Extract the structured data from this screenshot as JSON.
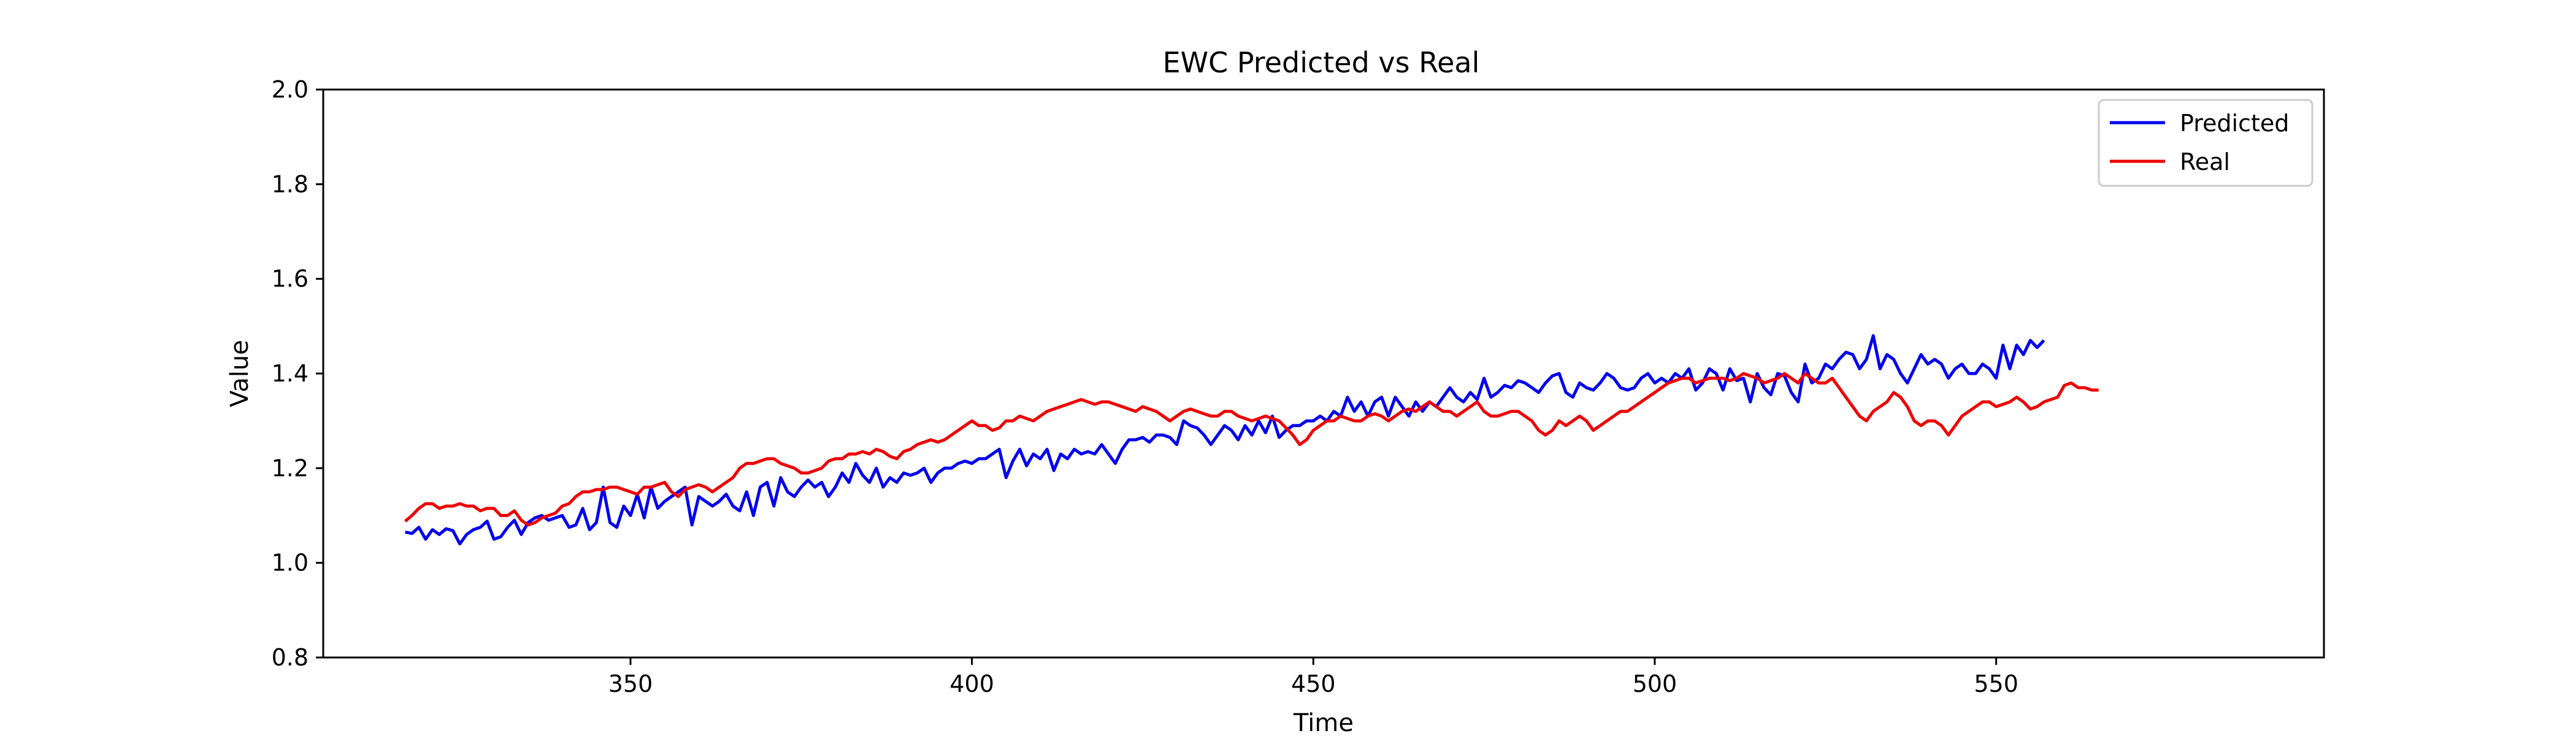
{
  "chart_data": {
    "type": "line",
    "title": "EWC Predicted vs Real",
    "xlabel": "Time",
    "ylabel": "Value",
    "xlim": [
      305,
      598
    ],
    "ylim": [
      0.8,
      2.0
    ],
    "xticks": [
      350,
      400,
      450,
      500,
      550
    ],
    "yticks": [
      0.8,
      1.0,
      1.2,
      1.4,
      1.6,
      1.8,
      2.0
    ],
    "xtick_labels": [
      "350",
      "400",
      "450",
      "500",
      "550"
    ],
    "ytick_labels": [
      "0.8",
      "1.0",
      "1.2",
      "1.4",
      "1.6",
      "1.8",
      "2.0"
    ],
    "grid": false,
    "legend_position": "top-right",
    "x_start": 317,
    "x_step": 1,
    "series": [
      {
        "name": "Predicted",
        "color": "#0000ee",
        "values": [
          1.065,
          1.062,
          1.075,
          1.05,
          1.07,
          1.06,
          1.072,
          1.068,
          1.04,
          1.06,
          1.07,
          1.075,
          1.088,
          1.05,
          1.055,
          1.075,
          1.09,
          1.06,
          1.085,
          1.095,
          1.1,
          1.09,
          1.095,
          1.1,
          1.075,
          1.08,
          1.115,
          1.07,
          1.085,
          1.16,
          1.085,
          1.075,
          1.12,
          1.1,
          1.145,
          1.095,
          1.16,
          1.115,
          1.13,
          1.14,
          1.15,
          1.16,
          1.08,
          1.14,
          1.13,
          1.12,
          1.13,
          1.145,
          1.12,
          1.11,
          1.15,
          1.1,
          1.16,
          1.17,
          1.12,
          1.18,
          1.15,
          1.14,
          1.16,
          1.175,
          1.16,
          1.17,
          1.14,
          1.16,
          1.19,
          1.17,
          1.21,
          1.185,
          1.17,
          1.2,
          1.16,
          1.18,
          1.17,
          1.19,
          1.185,
          1.19,
          1.2,
          1.17,
          1.19,
          1.2,
          1.2,
          1.21,
          1.215,
          1.21,
          1.22,
          1.22,
          1.23,
          1.24,
          1.18,
          1.215,
          1.24,
          1.205,
          1.23,
          1.22,
          1.24,
          1.195,
          1.23,
          1.22,
          1.24,
          1.23,
          1.235,
          1.23,
          1.25,
          1.23,
          1.21,
          1.24,
          1.26,
          1.26,
          1.265,
          1.255,
          1.27,
          1.27,
          1.265,
          1.25,
          1.3,
          1.29,
          1.285,
          1.27,
          1.25,
          1.27,
          1.29,
          1.28,
          1.26,
          1.29,
          1.27,
          1.3,
          1.275,
          1.31,
          1.265,
          1.28,
          1.29,
          1.29,
          1.3,
          1.3,
          1.31,
          1.3,
          1.32,
          1.31,
          1.35,
          1.32,
          1.34,
          1.31,
          1.34,
          1.35,
          1.31,
          1.35,
          1.33,
          1.31,
          1.34,
          1.32,
          1.34,
          1.33,
          1.35,
          1.37,
          1.35,
          1.34,
          1.36,
          1.345,
          1.39,
          1.35,
          1.36,
          1.375,
          1.37,
          1.385,
          1.38,
          1.37,
          1.36,
          1.38,
          1.395,
          1.4,
          1.36,
          1.35,
          1.38,
          1.37,
          1.365,
          1.38,
          1.4,
          1.39,
          1.37,
          1.365,
          1.37,
          1.39,
          1.4,
          1.38,
          1.39,
          1.38,
          1.4,
          1.39,
          1.41,
          1.365,
          1.38,
          1.41,
          1.4,
          1.365,
          1.41,
          1.385,
          1.39,
          1.34,
          1.4,
          1.37,
          1.355,
          1.4,
          1.395,
          1.36,
          1.34,
          1.42,
          1.38,
          1.39,
          1.42,
          1.41,
          1.43,
          1.445,
          1.44,
          1.41,
          1.43,
          1.48,
          1.41,
          1.44,
          1.43,
          1.4,
          1.38,
          1.41,
          1.44,
          1.42,
          1.43,
          1.42,
          1.39,
          1.41,
          1.42,
          1.4,
          1.4,
          1.42,
          1.41,
          1.39,
          1.46,
          1.41,
          1.46,
          1.44,
          1.47,
          1.455,
          1.47
        ],
        "values_truncated_note": ""
      },
      {
        "name": "Real",
        "color": "#ee0000",
        "values": [
          1.088,
          1.1,
          1.115,
          1.125,
          1.125,
          1.115,
          1.12,
          1.12,
          1.125,
          1.12,
          1.12,
          1.11,
          1.115,
          1.115,
          1.1,
          1.1,
          1.11,
          1.09,
          1.08,
          1.085,
          1.095,
          1.1,
          1.105,
          1.12,
          1.125,
          1.14,
          1.15,
          1.15,
          1.155,
          1.155,
          1.16,
          1.16,
          1.155,
          1.15,
          1.145,
          1.16,
          1.16,
          1.165,
          1.17,
          1.15,
          1.14,
          1.155,
          1.16,
          1.165,
          1.16,
          1.15,
          1.16,
          1.17,
          1.18,
          1.2,
          1.21,
          1.21,
          1.215,
          1.22,
          1.22,
          1.21,
          1.205,
          1.2,
          1.19,
          1.19,
          1.195,
          1.2,
          1.215,
          1.22,
          1.22,
          1.23,
          1.23,
          1.235,
          1.23,
          1.24,
          1.235,
          1.225,
          1.22,
          1.235,
          1.24,
          1.25,
          1.255,
          1.26,
          1.255,
          1.26,
          1.27,
          1.28,
          1.29,
          1.3,
          1.29,
          1.29,
          1.28,
          1.285,
          1.3,
          1.3,
          1.31,
          1.305,
          1.3,
          1.31,
          1.32,
          1.325,
          1.33,
          1.335,
          1.34,
          1.345,
          1.34,
          1.335,
          1.34,
          1.34,
          1.335,
          1.33,
          1.325,
          1.32,
          1.33,
          1.325,
          1.32,
          1.31,
          1.3,
          1.31,
          1.32,
          1.325,
          1.32,
          1.315,
          1.31,
          1.31,
          1.32,
          1.32,
          1.31,
          1.305,
          1.3,
          1.305,
          1.31,
          1.305,
          1.3,
          1.285,
          1.27,
          1.25,
          1.26,
          1.28,
          1.29,
          1.3,
          1.3,
          1.31,
          1.305,
          1.3,
          1.3,
          1.31,
          1.315,
          1.31,
          1.3,
          1.31,
          1.32,
          1.325,
          1.32,
          1.33,
          1.34,
          1.33,
          1.32,
          1.32,
          1.31,
          1.32,
          1.33,
          1.34,
          1.32,
          1.31,
          1.31,
          1.315,
          1.32,
          1.32,
          1.31,
          1.3,
          1.28,
          1.27,
          1.28,
          1.3,
          1.29,
          1.3,
          1.31,
          1.3,
          1.28,
          1.29,
          1.3,
          1.31,
          1.32,
          1.32,
          1.33,
          1.34,
          1.35,
          1.36,
          1.37,
          1.38,
          1.385,
          1.39,
          1.39,
          1.38,
          1.385,
          1.39,
          1.39,
          1.39,
          1.385,
          1.39,
          1.4,
          1.395,
          1.39,
          1.38,
          1.385,
          1.39,
          1.4,
          1.39,
          1.38,
          1.4,
          1.39,
          1.38,
          1.38,
          1.39,
          1.37,
          1.35,
          1.33,
          1.31,
          1.3,
          1.32,
          1.33,
          1.34,
          1.36,
          1.35,
          1.33,
          1.3,
          1.29,
          1.3,
          1.3,
          1.29,
          1.27,
          1.29,
          1.31,
          1.32,
          1.33,
          1.34,
          1.34,
          1.33,
          1.335,
          1.34,
          1.35,
          1.34,
          1.325,
          1.33,
          1.34,
          1.345,
          1.35,
          1.375,
          1.38,
          1.37,
          1.37,
          1.365,
          1.365
        ]
      }
    ]
  }
}
